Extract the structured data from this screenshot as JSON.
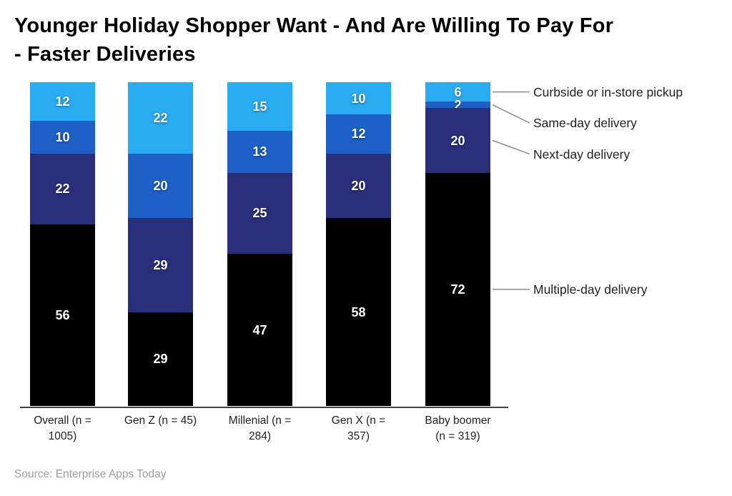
{
  "title": "Younger Holiday Shopper Want - And Are Willing To Pay For - Faster Deliveries",
  "title_lines": {
    "0": "Younger Holiday Shopper Want - And Are Willing To Pay For",
    "1": "- Faster Deliveries"
  },
  "source": "Source: Enterprise Apps Today",
  "colors": {
    "background": "#ffffff",
    "title_text": "#000000",
    "axis_line": "#454545",
    "leader_line": "#8c8c8c",
    "label_text": "#1f1f1f",
    "source_text": "#9e9e9e",
    "value_label_text": "#ffffff"
  },
  "chart_data": {
    "type": "bar",
    "stacked": true,
    "unit": "percent",
    "title": "Younger Holiday Shopper Want - And Are Willing To Pay For - Faster Deliveries",
    "xlabel": "",
    "ylabel": "",
    "ylim": [
      0,
      100
    ],
    "grid": false,
    "legend_position": "right-annotated-with-leader-lines",
    "categories": [
      "Overall (n = 1005)",
      "Gen Z (n = 45)",
      "Millenial (n = 284)",
      "Gen X (n = 357)",
      "Baby boomer (n = 319)"
    ],
    "category_label_lines": [
      [
        "Overall (n =",
        "1005)"
      ],
      [
        "Gen Z (n = 45)"
      ],
      [
        "Millenial (n =",
        "284)"
      ],
      [
        "Gen X (n =",
        "357)"
      ],
      [
        "Baby boomer",
        "(n = 319)"
      ]
    ],
    "series_order_note": "listed top-to-bottom as rendered in each stacked column",
    "series": [
      {
        "name": "Curbside or in-store pickup",
        "color": "#29ACF2",
        "values": [
          12,
          22,
          15,
          10,
          6
        ]
      },
      {
        "name": "Same-day delivery",
        "color": "#1C60C8",
        "values": [
          10,
          20,
          13,
          12,
          2
        ]
      },
      {
        "name": "Next-day delivery",
        "color": "#2A2F7C",
        "values": [
          22,
          29,
          25,
          20,
          20
        ]
      },
      {
        "name": "Multiple-day delivery",
        "color": "#000000",
        "values": [
          56,
          29,
          47,
          58,
          72
        ]
      }
    ]
  }
}
